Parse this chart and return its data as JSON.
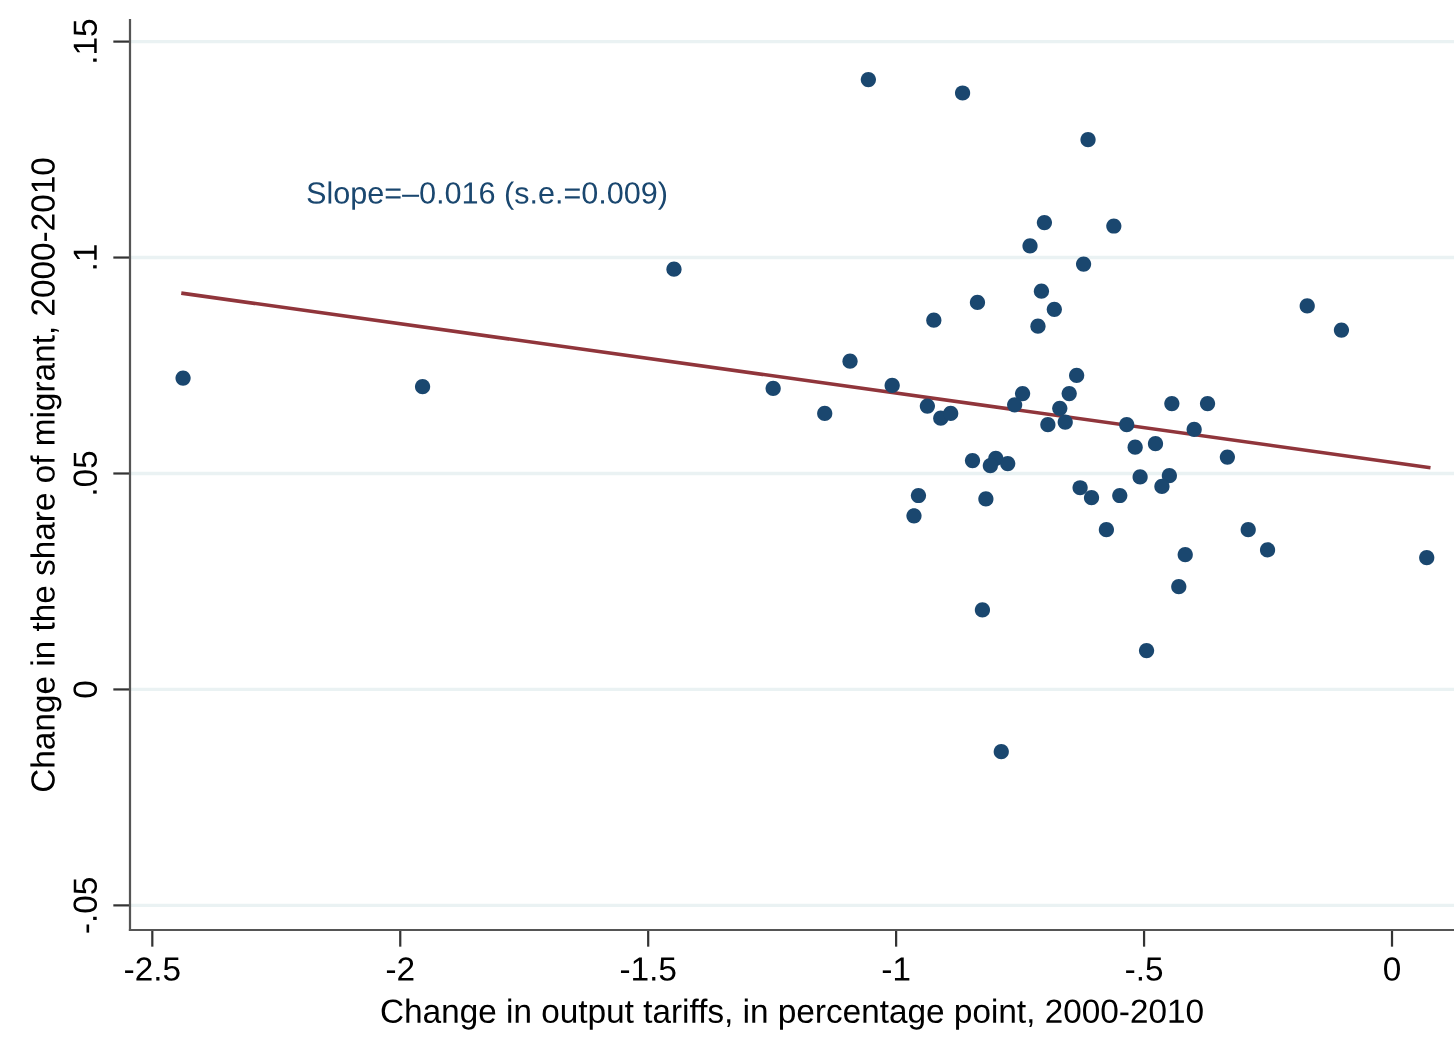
{
  "chart_data": {
    "type": "scatter",
    "xlabel": "Change in output tariffs, in percentage point, 2000-2010",
    "ylabel": "Change in the share of migrant, 2000-2010",
    "xlim": [
      -2.545,
      0.125
    ],
    "ylim": [
      -0.0557,
      0.155
    ],
    "xticks": [
      {
        "value": -2.5,
        "label": "-2.5"
      },
      {
        "value": -2,
        "label": "-2"
      },
      {
        "value": -1.5,
        "label": "-1.5"
      },
      {
        "value": -1,
        "label": "-1"
      },
      {
        "value": -0.5,
        "label": "-.5"
      },
      {
        "value": 0,
        "label": "0"
      }
    ],
    "yticks": [
      {
        "value": -0.05,
        "label": "-.05"
      },
      {
        "value": 0,
        "label": "0"
      },
      {
        "value": 0.05,
        "label": ".05"
      },
      {
        "value": 0.1,
        "label": ".1"
      },
      {
        "value": 0.15,
        "label": ".15"
      }
    ],
    "grid": "y",
    "marker": "circle",
    "legend": false,
    "annotations": [
      "Slope=–0.016 (s.e.=0.009)"
    ],
    "series": [
      {
        "color": "#1a476f",
        "x": [
          -2.438,
          -1.955,
          -1.448,
          -1.248,
          -1.056,
          -0.866,
          -0.613,
          -0.701,
          -0.561,
          -0.73,
          -0.622,
          -0.707,
          -0.836,
          -0.681,
          -0.924,
          -0.714,
          -0.171,
          -0.102,
          -1.093,
          -1.008,
          -0.636,
          -0.745,
          -0.651,
          -1.144,
          -0.937,
          -0.91,
          -0.89,
          -0.761,
          -0.67,
          -0.694,
          -0.659,
          -0.535,
          -0.444,
          -0.372,
          -0.399,
          -0.518,
          -0.477,
          -0.332,
          -0.846,
          -0.799,
          -0.81,
          -0.775,
          -0.508,
          -0.449,
          -0.464,
          -0.629,
          -0.606,
          -0.549,
          -0.955,
          -0.964,
          -0.819,
          -0.576,
          -0.29,
          -0.251,
          -0.417,
          -0.43,
          0.07,
          -0.826,
          -0.495,
          -0.788
        ],
        "values": [
          0.0721,
          0.0701,
          0.0973,
          0.0697,
          0.1412,
          0.1381,
          0.1273,
          0.1081,
          0.1073,
          0.1027,
          0.0985,
          0.0922,
          0.0896,
          0.088,
          0.0855,
          0.0841,
          0.0888,
          0.0832,
          0.076,
          0.0704,
          0.0727,
          0.0685,
          0.0685,
          0.0639,
          0.0656,
          0.0628,
          0.0639,
          0.0659,
          0.0651,
          0.0613,
          0.0619,
          0.0613,
          0.0662,
          0.0662,
          0.0602,
          0.0561,
          0.0569,
          0.0538,
          0.053,
          0.0535,
          0.0518,
          0.0523,
          0.0492,
          0.0495,
          0.047,
          0.0467,
          0.0444,
          0.0449,
          0.0449,
          0.0402,
          0.0441,
          0.037,
          0.037,
          0.0323,
          0.0312,
          0.0238,
          0.0305,
          0.0184,
          0.009,
          -0.0144
        ]
      },
      {
        "type": "line",
        "color": "#90353b",
        "x": [
          -2.438,
          0.074
        ],
        "values": [
          0.0917,
          0.0514
        ],
        "marker": "none",
        "line_style": "solid"
      }
    ]
  }
}
